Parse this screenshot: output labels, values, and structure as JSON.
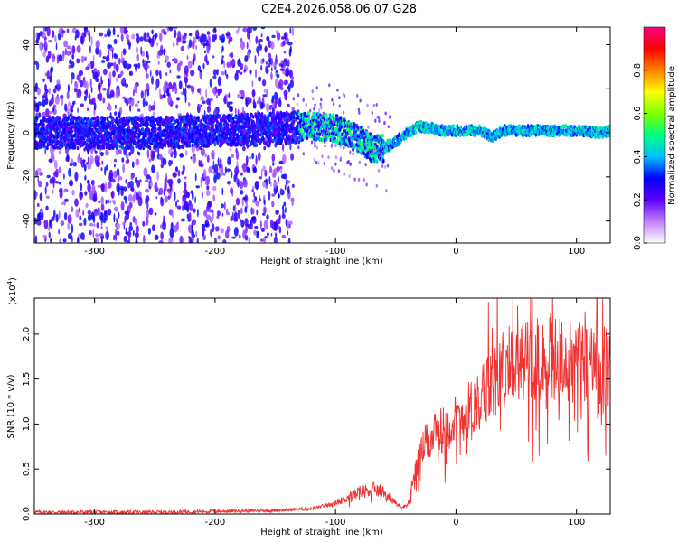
{
  "title": "C2E4.2026.058.06.07.G28",
  "chart_data": [
    {
      "type": "heatmap",
      "xlabel": "Height of straight line (km)",
      "ylabel": "Frequency (Hz)",
      "xlim": [
        -350,
        128
      ],
      "ylim": [
        -50,
        48
      ],
      "xticks": [
        -300,
        -200,
        -100,
        0,
        100
      ],
      "xtick_labels": [
        "-300",
        "-200",
        "-100",
        "0",
        "100"
      ],
      "yticks": [
        -40,
        -20,
        0,
        20,
        40
      ],
      "ytick_labels": [
        "-40",
        "-20",
        "0",
        "20",
        "40"
      ],
      "colorbar": {
        "label": "Normalized spectral amplitude",
        "range": [
          0,
          1
        ],
        "ticks": [
          0.0,
          0.2,
          0.4,
          0.6,
          0.8
        ],
        "tick_labels": [
          "0.0",
          "0.2",
          "0.4",
          "0.6",
          "0.8"
        ],
        "colors": [
          "#ffffff",
          "#c080ff",
          "#6000ff",
          "#0000ff",
          "#00c0ff",
          "#00ff80",
          "#80ff00",
          "#ffff00",
          "#ff8000",
          "#ff0000",
          "#ff0080"
        ]
      },
      "ridge": {
        "x": [
          -350,
          -300,
          -250,
          -200,
          -150,
          -120,
          -100,
          -80,
          -70,
          -60,
          -50,
          -40,
          -30,
          -20,
          -10,
          0,
          10,
          20,
          30,
          40,
          60,
          80,
          100,
          120,
          128
        ],
        "y": [
          0,
          0,
          0,
          1,
          2,
          3,
          2,
          -3,
          -7,
          -7,
          -4,
          0,
          3,
          2,
          1,
          1,
          1,
          1,
          -2,
          1,
          1,
          1,
          1,
          0,
          1
        ]
      }
    },
    {
      "type": "line",
      "xlabel": "Height of straight line (km)",
      "ylabel": "SNR (10 * v/v)",
      "multiplier": "(x10",
      "multiplier_exp": "4",
      "multiplier_close": ")",
      "xlim": [
        -350,
        128
      ],
      "ylim": [
        0,
        2.4
      ],
      "xticks": [
        -300,
        -200,
        -100,
        0,
        100
      ],
      "xtick_labels": [
        "-300",
        "-200",
        "-100",
        "0",
        "100"
      ],
      "yticks": [
        0.0,
        0.5,
        1.0,
        1.5,
        2.0
      ],
      "ytick_labels": [
        "0.0",
        "0.5",
        "1.0",
        "1.5",
        "2.0"
      ],
      "color": "#ee3333",
      "series": [
        {
          "name": "SNR",
          "x": [
            -350,
            -300,
            -250,
            -200,
            -150,
            -120,
            -100,
            -90,
            -80,
            -70,
            -60,
            -50,
            -45,
            -40,
            -35,
            -30,
            -20,
            -10,
            0,
            10,
            20,
            30,
            40,
            50,
            60,
            70,
            80,
            90,
            100,
            110,
            120,
            128
          ],
          "y": [
            0.02,
            0.02,
            0.02,
            0.03,
            0.04,
            0.06,
            0.12,
            0.18,
            0.25,
            0.28,
            0.25,
            0.12,
            0.08,
            0.1,
            0.4,
            0.7,
            0.85,
            0.95,
            1.05,
            1.15,
            1.3,
            1.45,
            1.6,
            1.7,
            1.75,
            1.72,
            1.75,
            1.7,
            1.75,
            1.65,
            1.65,
            1.6
          ]
        }
      ]
    }
  ]
}
